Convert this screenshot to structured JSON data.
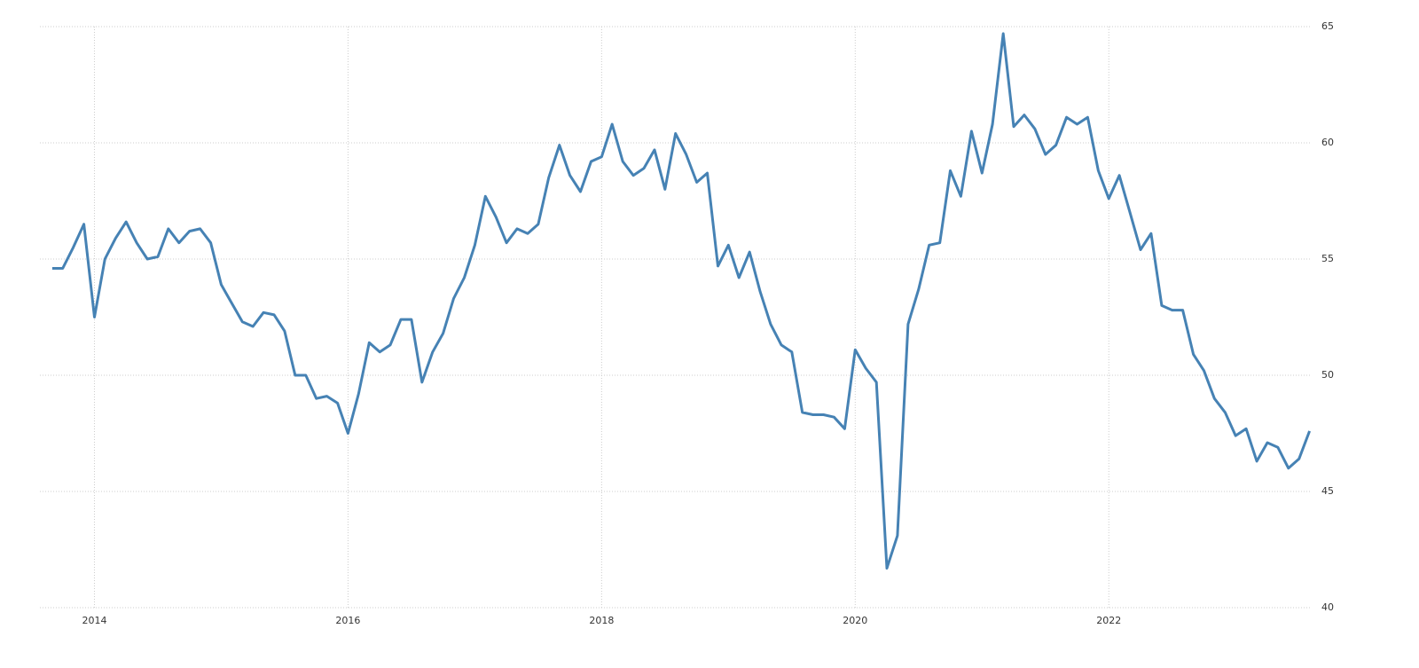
{
  "chart_data": {
    "type": "line",
    "x": [
      2013.667,
      2013.75,
      2013.833,
      2013.917,
      2014,
      2014.083,
      2014.167,
      2014.25,
      2014.333,
      2014.417,
      2014.5,
      2014.583,
      2014.667,
      2014.75,
      2014.833,
      2014.917,
      2015,
      2015.083,
      2015.167,
      2015.25,
      2015.333,
      2015.417,
      2015.5,
      2015.583,
      2015.667,
      2015.75,
      2015.833,
      2015.917,
      2016,
      2016.083,
      2016.167,
      2016.25,
      2016.333,
      2016.417,
      2016.5,
      2016.583,
      2016.667,
      2016.75,
      2016.833,
      2016.917,
      2017,
      2017.083,
      2017.167,
      2017.25,
      2017.333,
      2017.417,
      2017.5,
      2017.583,
      2017.667,
      2017.75,
      2017.833,
      2017.917,
      2018,
      2018.083,
      2018.167,
      2018.25,
      2018.333,
      2018.417,
      2018.5,
      2018.583,
      2018.667,
      2018.75,
      2018.833,
      2018.917,
      2019,
      2019.083,
      2019.167,
      2019.25,
      2019.333,
      2019.417,
      2019.5,
      2019.583,
      2019.667,
      2019.75,
      2019.833,
      2019.917,
      2020,
      2020.083,
      2020.167,
      2020.25,
      2020.333,
      2020.417,
      2020.5,
      2020.583,
      2020.667,
      2020.75,
      2020.833,
      2020.917,
      2021,
      2021.083,
      2021.167,
      2021.25,
      2021.333,
      2021.417,
      2021.5,
      2021.583,
      2021.667,
      2021.75,
      2021.833,
      2021.917,
      2022,
      2022.083,
      2022.167,
      2022.25,
      2022.333,
      2022.417,
      2022.5,
      2022.583,
      2022.667,
      2022.75,
      2022.833,
      2022.917,
      2023,
      2023.083,
      2023.167,
      2023.25,
      2023.333,
      2023.417,
      2023.5,
      2023.583
    ],
    "series": [
      {
        "color": "#4682b4",
        "values": [
          54.6,
          54.6,
          55.5,
          56.5,
          52.5,
          55.0,
          55.9,
          56.6,
          55.7,
          55.0,
          55.1,
          56.3,
          55.7,
          56.2,
          56.3,
          55.7,
          53.9,
          53.1,
          52.3,
          52.1,
          52.7,
          52.6,
          51.9,
          50.0,
          50.0,
          49.0,
          49.1,
          48.8,
          47.5,
          49.2,
          51.4,
          51.0,
          51.3,
          52.4,
          52.4,
          49.7,
          51.0,
          51.8,
          53.3,
          54.2,
          55.6,
          57.7,
          56.8,
          55.7,
          56.3,
          56.1,
          56.5,
          58.5,
          59.9,
          58.6,
          57.9,
          59.2,
          59.4,
          60.8,
          59.2,
          58.6,
          58.9,
          59.7,
          58.0,
          60.4,
          59.5,
          58.3,
          58.7,
          54.7,
          55.6,
          54.2,
          55.3,
          53.6,
          52.2,
          51.3,
          51.0,
          48.4,
          48.3,
          48.3,
          48.2,
          47.7,
          51.1,
          50.3,
          49.7,
          41.7,
          43.1,
          52.2,
          53.7,
          55.6,
          55.7,
          58.8,
          57.7,
          60.5,
          58.7,
          60.8,
          64.7,
          60.7,
          61.2,
          60.6,
          59.5,
          59.9,
          61.1,
          60.8,
          61.1,
          58.8,
          57.6,
          58.6,
          57.0,
          55.4,
          56.1,
          53.0,
          52.8,
          52.8,
          50.9,
          50.2,
          49.0,
          48.4,
          47.4,
          47.7,
          46.3,
          47.1,
          46.9,
          46.0,
          46.4,
          47.6
        ]
      }
    ],
    "xlim": [
      2013.57,
      2023.6
    ],
    "xticks": [
      2014,
      2016,
      2018,
      2020,
      2022
    ],
    "ylim": [
      40,
      65
    ],
    "yticks": [
      40,
      45,
      50,
      55,
      60,
      65
    ],
    "grid": true
  }
}
